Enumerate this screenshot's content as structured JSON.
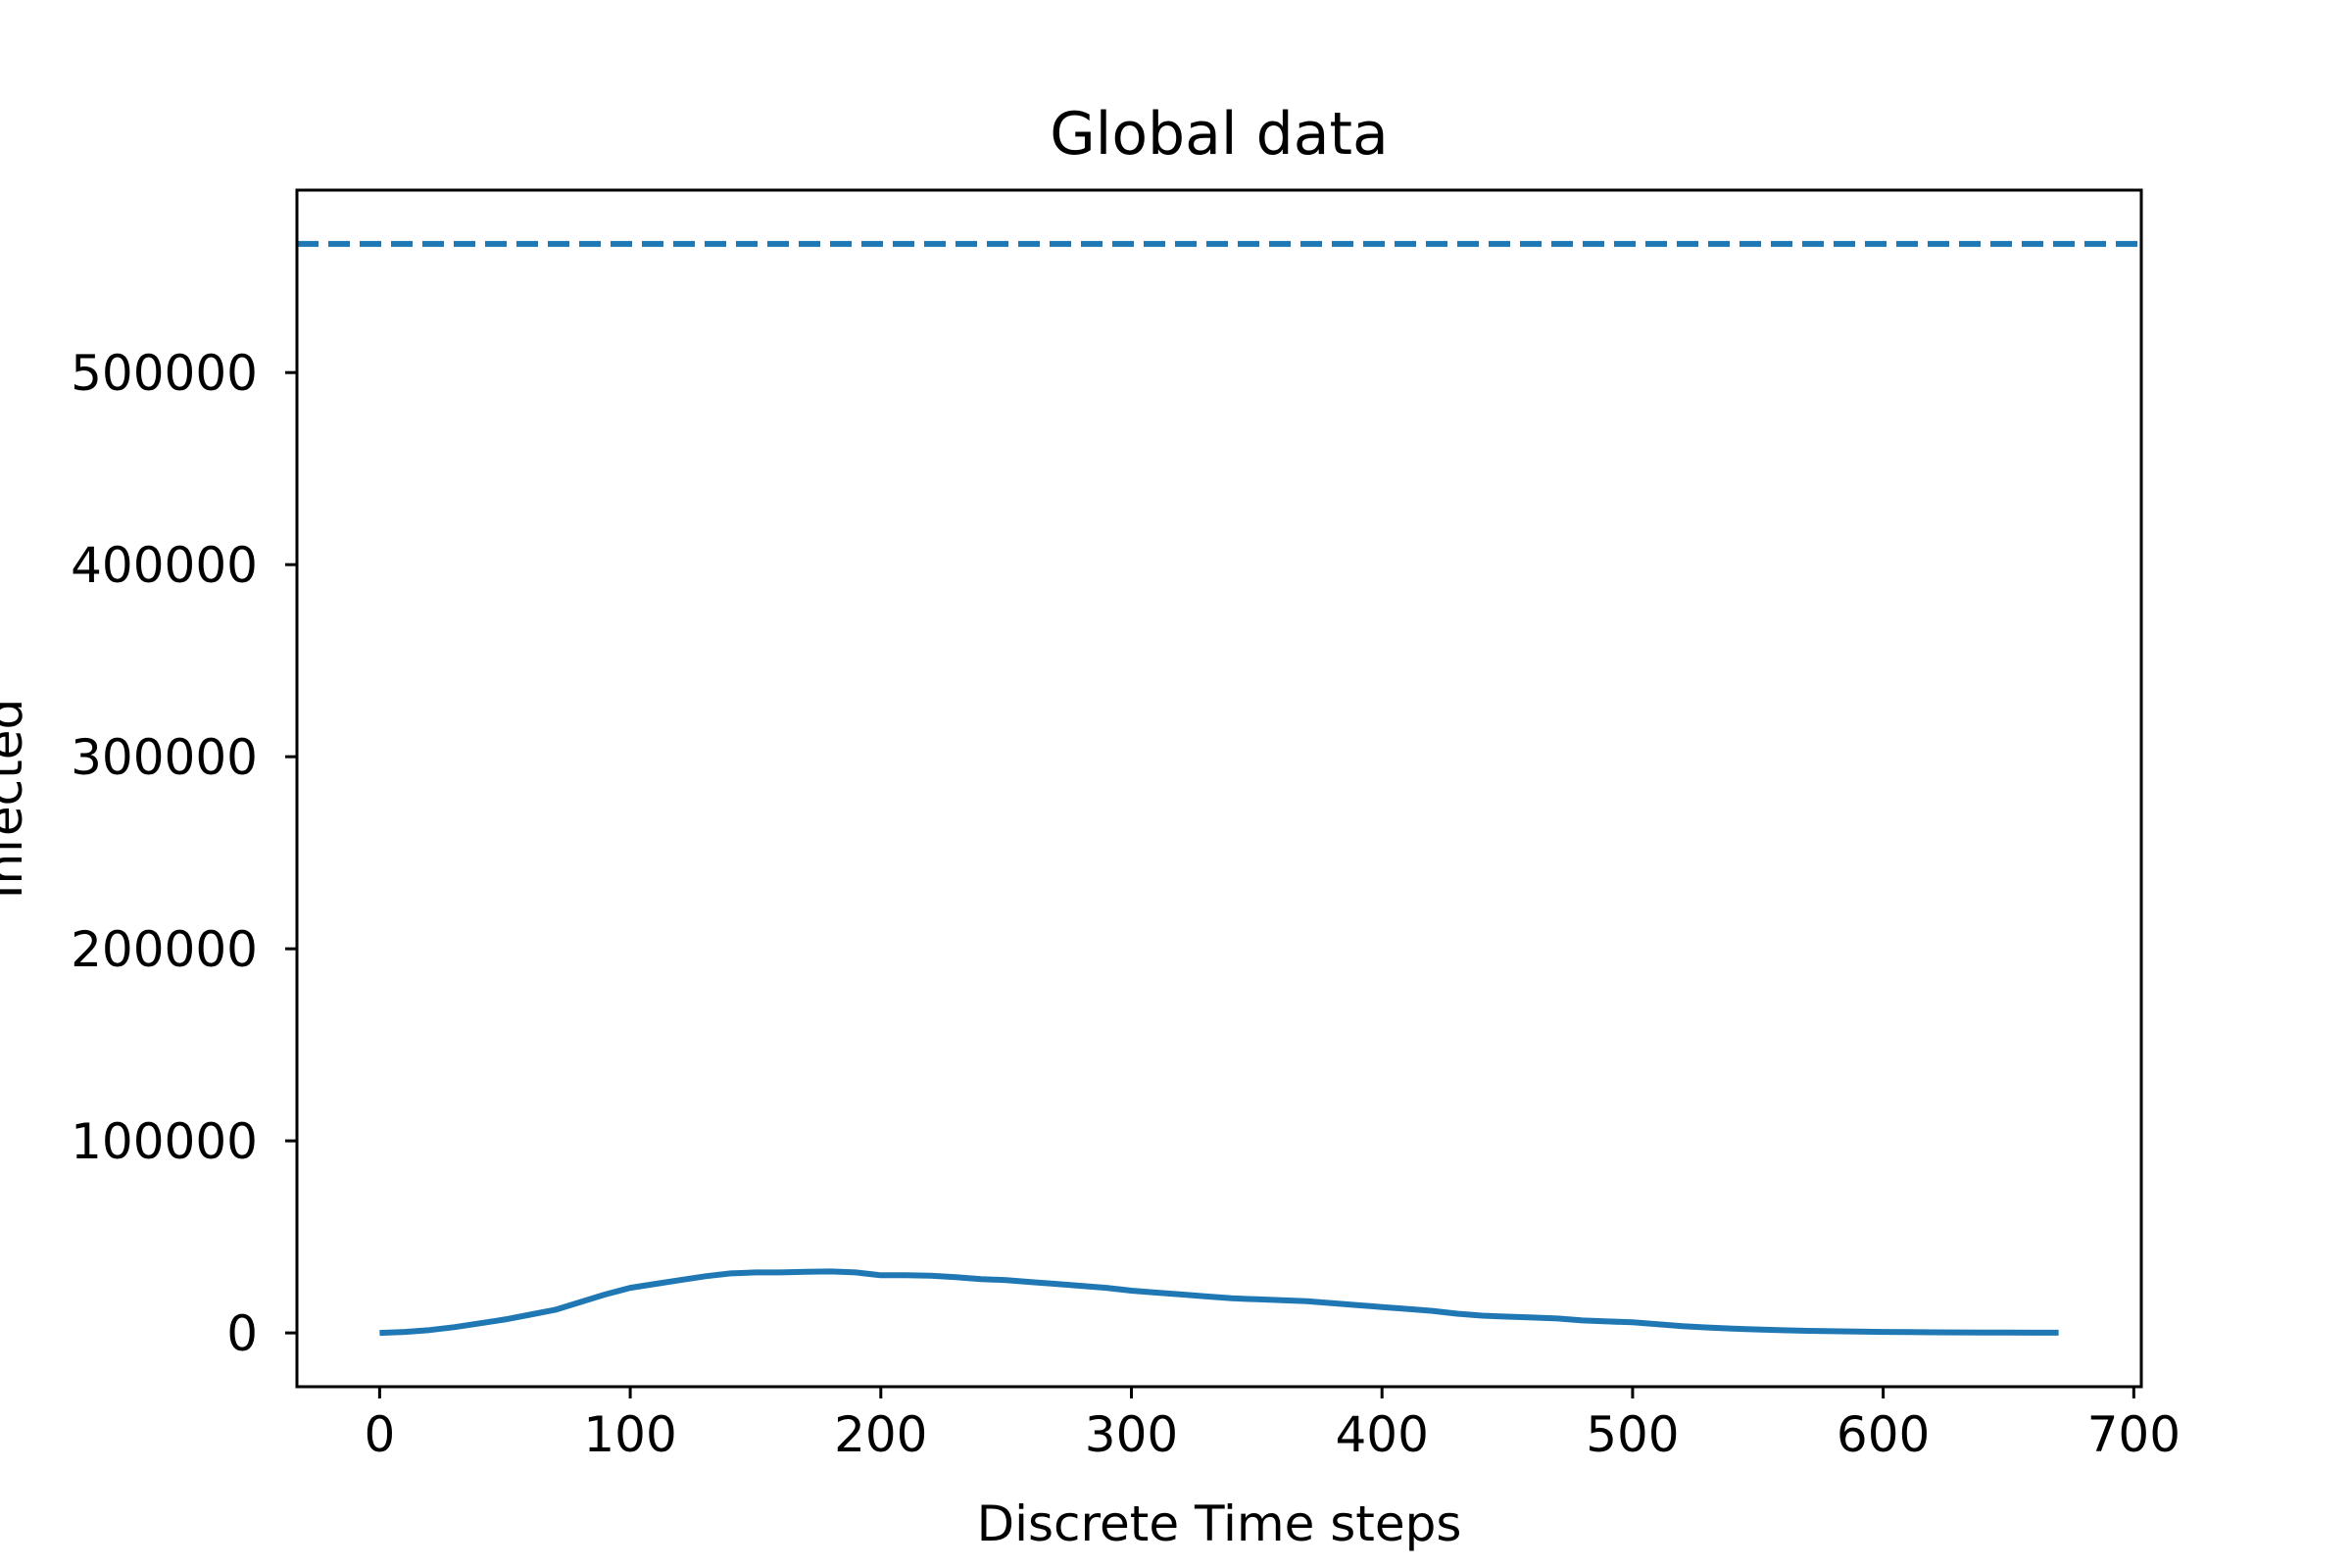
{
  "chart_data": {
    "type": "line",
    "title": "Global data",
    "xlabel": "Discrete Time steps",
    "ylabel": "Infected",
    "xlim": [
      -33,
      703
    ],
    "ylim": [
      -28000,
      595000
    ],
    "xticks": [
      0,
      100,
      200,
      300,
      400,
      500,
      600,
      700
    ],
    "yticks": [
      0,
      100000,
      200000,
      300000,
      400000,
      500000
    ],
    "grid": false,
    "legend": null,
    "colors": {
      "series": "#1f77b4",
      "axes": "#000000"
    },
    "series": [
      {
        "style": "solid",
        "x": [
          0,
          10,
          20,
          30,
          40,
          50,
          60,
          70,
          80,
          90,
          100,
          110,
          120,
          130,
          140,
          150,
          160,
          170,
          180,
          190,
          200,
          210,
          220,
          230,
          240,
          250,
          260,
          270,
          280,
          290,
          300,
          310,
          320,
          330,
          340,
          350,
          360,
          370,
          380,
          390,
          400,
          410,
          420,
          430,
          440,
          450,
          460,
          470,
          480,
          490,
          500,
          510,
          520,
          530,
          540,
          550,
          560,
          570,
          580,
          590,
          600,
          610,
          620,
          630,
          640,
          650,
          660,
          670
        ],
        "y": [
          0,
          500,
          1500,
          3000,
          5000,
          7000,
          9500,
          12000,
          16000,
          20000,
          23500,
          25500,
          27500,
          29500,
          31000,
          31500,
          31500,
          31800,
          32000,
          31500,
          30000,
          30000,
          29800,
          29000,
          28000,
          27500,
          26500,
          25500,
          24500,
          23500,
          22000,
          21000,
          20000,
          19000,
          18000,
          17500,
          17000,
          16500,
          15500,
          14500,
          13500,
          12500,
          11500,
          10000,
          9000,
          8500,
          8000,
          7500,
          6500,
          6000,
          5500,
          4500,
          3500,
          2800,
          2200,
          1800,
          1400,
          1100,
          900,
          700,
          500,
          400,
          300,
          250,
          200,
          150,
          100,
          100
        ]
      },
      {
        "style": "dashed",
        "x": [
          -33,
          703
        ],
        "y": [
          567000,
          567000
        ]
      }
    ]
  }
}
